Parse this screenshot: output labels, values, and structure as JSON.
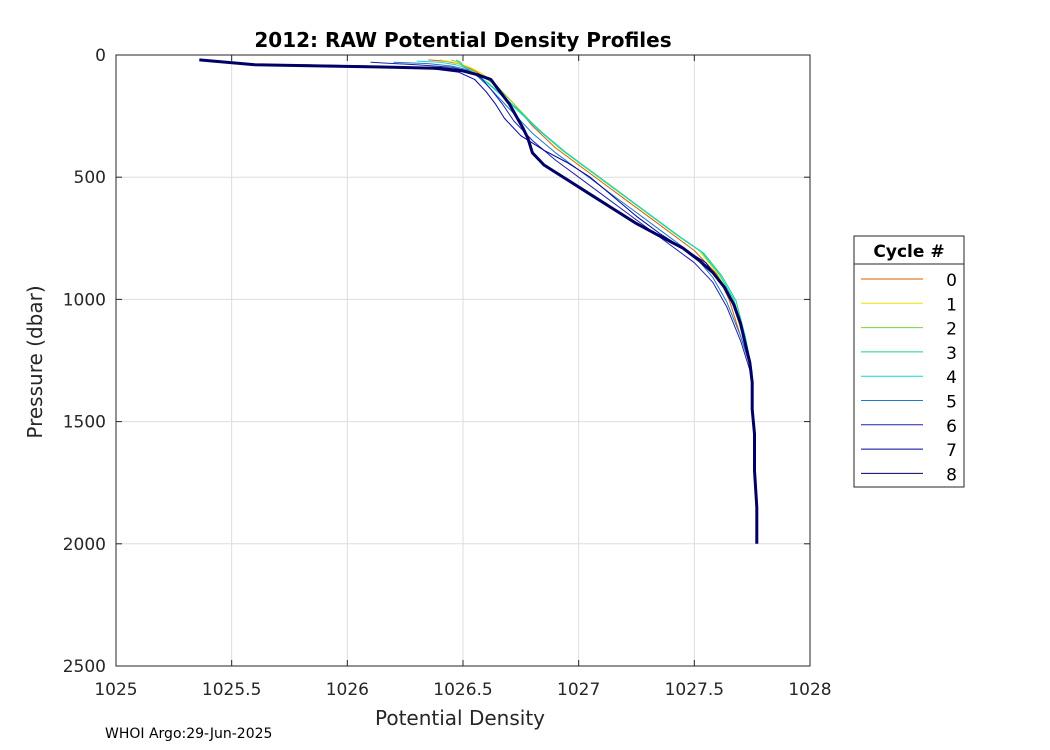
{
  "footer": "WHOI Argo:29-Jun-2025",
  "chart_data": {
    "type": "line",
    "title": "2012: RAW Potential Density Profiles",
    "xlabel": "Potential Density",
    "ylabel": "Pressure (dbar)",
    "xlim": [
      1025,
      1028
    ],
    "ylim": [
      0,
      2500
    ],
    "y_reversed": true,
    "grid": true,
    "xticks": [
      "1025",
      "1025.5",
      "1026",
      "1026.5",
      "1027",
      "1027.5",
      "1028"
    ],
    "xtick_values": [
      1025,
      1025.5,
      1026,
      1026.5,
      1027,
      1027.5,
      1028
    ],
    "yticks": [
      "0",
      "500",
      "1000",
      "1500",
      "2000",
      "2500"
    ],
    "ytick_values": [
      0,
      500,
      1000,
      1500,
      2000,
      2500
    ],
    "legend": {
      "title": "Cycle #",
      "position": "outside-right"
    },
    "series": [
      {
        "name": "0",
        "color": "#d95f02",
        "x": [
          1026.35,
          1026.42,
          1026.48,
          1026.52,
          1026.56,
          1026.6,
          1026.65,
          1026.72,
          1026.8,
          1026.9,
          1027.0,
          1027.1,
          1027.2,
          1027.3,
          1027.4,
          1027.5,
          1027.6,
          1027.65,
          1027.7,
          1027.75
        ],
        "y": [
          20,
          25,
          35,
          50,
          70,
          95,
          130,
          200,
          290,
          380,
          450,
          520,
          590,
          660,
          730,
          800,
          900,
          1000,
          1150,
          1300
        ]
      },
      {
        "name": "1",
        "color": "#e6e600",
        "x": [
          1026.4,
          1026.46,
          1026.5,
          1026.54,
          1026.58,
          1026.62,
          1026.67,
          1026.74,
          1026.82,
          1026.92,
          1027.02,
          1027.12,
          1027.22,
          1027.32,
          1027.42,
          1027.52,
          1027.6,
          1027.66,
          1027.71,
          1027.75
        ],
        "y": [
          20,
          30,
          40,
          55,
          75,
          105,
          150,
          220,
          300,
          385,
          455,
          525,
          595,
          665,
          735,
          800,
          895,
          995,
          1150,
          1300
        ]
      },
      {
        "name": "2",
        "color": "#80d040",
        "x": [
          1026.45,
          1026.48,
          1026.5,
          1026.53,
          1026.57,
          1026.62,
          1026.68,
          1026.75,
          1026.83,
          1026.93,
          1027.03,
          1027.13,
          1027.23,
          1027.33,
          1027.43,
          1027.53,
          1027.61,
          1027.67,
          1027.71,
          1027.75
        ],
        "y": [
          20,
          30,
          45,
          60,
          80,
          110,
          160,
          230,
          310,
          390,
          460,
          530,
          600,
          670,
          740,
          805,
          900,
          1000,
          1150,
          1300
        ]
      },
      {
        "name": "3",
        "color": "#20d080",
        "x": [
          1026.47,
          1026.49,
          1026.5,
          1026.52,
          1026.56,
          1026.61,
          1026.67,
          1026.75,
          1026.84,
          1026.94,
          1027.04,
          1027.14,
          1027.24,
          1027.34,
          1027.44,
          1027.54,
          1027.62,
          1027.68,
          1027.72,
          1027.75
        ],
        "y": [
          20,
          30,
          45,
          60,
          85,
          115,
          165,
          235,
          315,
          395,
          465,
          535,
          605,
          675,
          745,
          810,
          905,
          1005,
          1150,
          1300
        ]
      },
      {
        "name": "4",
        "color": "#10d8d8",
        "x": [
          1026.3,
          1026.4,
          1026.47,
          1026.52,
          1026.56,
          1026.6,
          1026.66,
          1026.74,
          1026.83,
          1026.93,
          1027.03,
          1027.13,
          1027.23,
          1027.33,
          1027.43,
          1027.53,
          1027.61,
          1027.67,
          1027.72,
          1027.75
        ],
        "y": [
          25,
          30,
          40,
          55,
          80,
          110,
          160,
          230,
          310,
          390,
          460,
          530,
          600,
          670,
          740,
          805,
          900,
          1000,
          1150,
          1300
        ]
      },
      {
        "name": "5",
        "color": "#1f78c8",
        "x": [
          1026.2,
          1026.35,
          1026.45,
          1026.52,
          1026.56,
          1026.6,
          1026.65,
          1026.72,
          1026.8,
          1026.9,
          1027.0,
          1027.1,
          1027.2,
          1027.3,
          1027.4,
          1027.5,
          1027.58,
          1027.64,
          1027.7,
          1027.75
        ],
        "y": [
          30,
          35,
          45,
          60,
          85,
          120,
          170,
          240,
          320,
          400,
          470,
          540,
          610,
          680,
          750,
          820,
          910,
          1010,
          1150,
          1300
        ]
      },
      {
        "name": "6",
        "color": "#2020a8",
        "x": [
          1026.1,
          1026.3,
          1026.45,
          1026.52,
          1026.58,
          1026.62,
          1026.67,
          1026.72,
          1026.8,
          1026.9,
          1027.0,
          1027.1,
          1027.2,
          1027.3,
          1027.4,
          1027.5,
          1027.58,
          1027.64,
          1027.7,
          1027.75
        ],
        "y": [
          30,
          40,
          50,
          65,
          95,
          140,
          200,
          270,
          350,
          430,
          500,
          570,
          640,
          710,
          780,
          850,
          930,
          1030,
          1170,
          1320
        ]
      },
      {
        "name": "7",
        "color": "#0000a0",
        "x": [
          1025.8,
          1026.1,
          1026.35,
          1026.48,
          1026.55,
          1026.6,
          1026.64,
          1026.68,
          1026.75,
          1026.85,
          1026.95,
          1027.05,
          1027.15,
          1027.25,
          1027.35,
          1027.45,
          1027.55,
          1027.62,
          1027.68,
          1027.72,
          1027.75
        ],
        "y": [
          40,
          45,
          55,
          70,
          100,
          150,
          200,
          260,
          330,
          390,
          440,
          500,
          580,
          660,
          730,
          790,
          850,
          940,
          1040,
          1180,
          1320
        ]
      },
      {
        "name": "8",
        "color": "#000066",
        "x": [
          1025.36,
          1025.6,
          1025.9,
          1026.2,
          1026.4,
          1026.5,
          1026.56,
          1026.62,
          1026.66,
          1026.7,
          1026.73,
          1026.76,
          1026.78,
          1026.8,
          1026.85,
          1026.95,
          1027.05,
          1027.15,
          1027.25,
          1027.35,
          1027.45,
          1027.52,
          1027.58,
          1027.63,
          1027.67,
          1027.7,
          1027.72,
          1027.74,
          1027.75,
          1027.75,
          1027.76,
          1027.76,
          1027.77,
          1027.77
        ],
        "y": [
          20,
          40,
          45,
          50,
          55,
          65,
          80,
          100,
          150,
          200,
          250,
          300,
          340,
          400,
          450,
          510,
          570,
          630,
          690,
          740,
          790,
          840,
          890,
          950,
          1020,
          1100,
          1180,
          1260,
          1340,
          1450,
          1550,
          1700,
          1850,
          2000
        ]
      }
    ]
  }
}
